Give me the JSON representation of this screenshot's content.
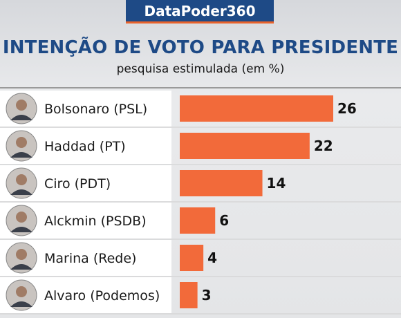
{
  "header": {
    "brand": "DataPoder360"
  },
  "chart_data": {
    "type": "bar",
    "title": "INTENÇÃO DE VOTO PARA PRESIDENTE",
    "subtitle": "pesquisa estimulada (em %)",
    "categories": [
      "Bolsonaro (PSL)",
      "Haddad (PT)",
      "Ciro (PDT)",
      "Alckmin (PSDB)",
      "Marina (Rede)",
      "Alvaro (Podemos)"
    ],
    "values": [
      26,
      22,
      14,
      6,
      4,
      3
    ],
    "xlim": [
      0,
      26
    ],
    "orientation": "horizontal",
    "bar_color": "#f26a3a"
  },
  "colors": {
    "brand_bg": "#1e4a86",
    "accent": "#e8632c",
    "title": "#1e4a86"
  }
}
